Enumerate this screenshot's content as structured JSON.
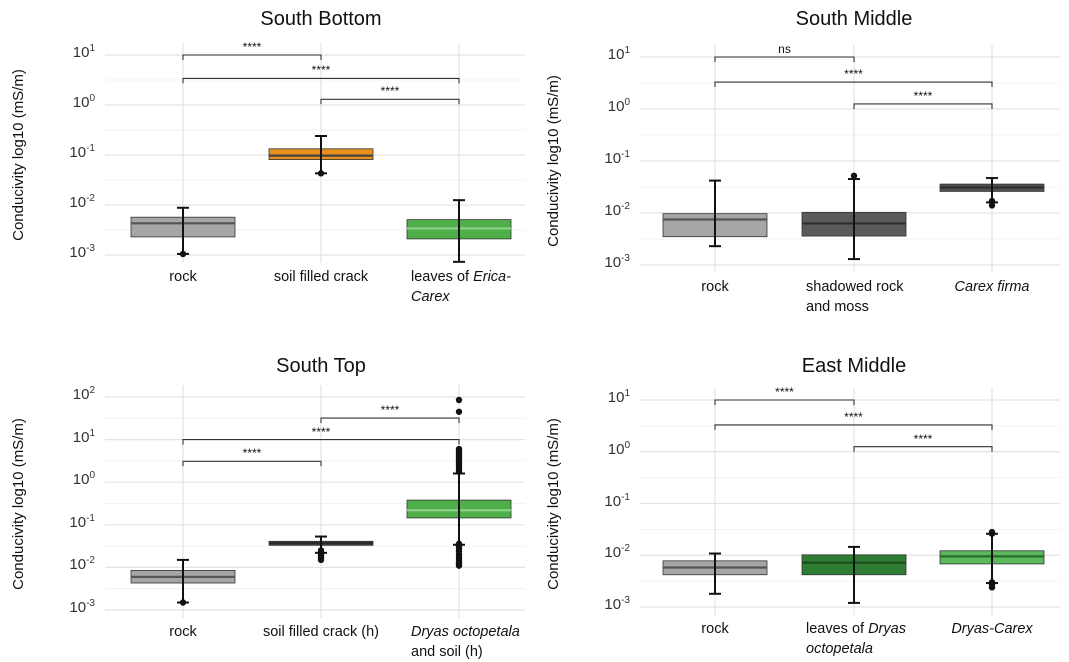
{
  "chart_data": [
    {
      "id": "sb",
      "type": "box",
      "title": "South Bottom",
      "ylabel": "Conducivity log10 (mS/m)",
      "yscale": "log",
      "ytick_exponents": [
        -3,
        -2,
        -1,
        0,
        1
      ],
      "ylim_exp": [
        -3.05,
        1.2
      ],
      "grid": true,
      "categories": [
        {
          "label": [
            {
              "t": "rock",
              "i": false
            }
          ]
        },
        {
          "label": [
            {
              "t": "soil filled crack",
              "i": false
            }
          ]
        },
        {
          "label": [
            {
              "t": "leaves of ",
              "i": false
            },
            {
              "t": "Erica-",
              "i": true
            },
            {
              "br": true
            },
            {
              "t": "Carex",
              "i": true
            }
          ]
        }
      ],
      "boxes": [
        {
          "whisker_low": 0.00105,
          "q1": 0.0023,
          "median": 0.0043,
          "q3": 0.0057,
          "whisker_high": 0.0088,
          "fill": "#a6a6a6",
          "median_color": "#555555",
          "outliers": [
            0.00105
          ]
        },
        {
          "whisker_low": 0.043,
          "q1": 0.081,
          "median": 0.097,
          "q3": 0.133,
          "whisker_high": 0.24,
          "fill": "#e88f1c",
          "median_color": "#444444",
          "outliers": [
            0.043
          ]
        },
        {
          "whisker_low": 0.00073,
          "q1": 0.0021,
          "median": 0.0034,
          "q3": 0.0051,
          "whisker_high": 0.0125,
          "fill": "#4fb04a",
          "median_color": "#8fd08a",
          "outliers": []
        }
      ],
      "comparisons": [
        {
          "from": 0,
          "to": 1,
          "y": 10,
          "label": "****"
        },
        {
          "from": 0,
          "to": 2,
          "y": 3.4,
          "label": "****"
        },
        {
          "from": 1,
          "to": 2,
          "y": 1.3,
          "label": "****"
        }
      ]
    },
    {
      "id": "sm",
      "type": "box",
      "title": "South Middle",
      "ylabel": "Conducivity log10 (mS/m)",
      "yscale": "log",
      "ytick_exponents": [
        -3,
        -2,
        -1,
        0,
        1
      ],
      "ylim_exp": [
        -3.05,
        1.2
      ],
      "grid": true,
      "categories": [
        {
          "label": [
            {
              "t": "rock",
              "i": false
            }
          ]
        },
        {
          "label": [
            {
              "t": "shadowed rock",
              "i": false
            },
            {
              "br": true
            },
            {
              "t": "and moss",
              "i": false
            }
          ]
        },
        {
          "label": [
            {
              "t": "Carex firma",
              "i": true
            }
          ]
        }
      ],
      "boxes": [
        {
          "whisker_low": 0.0023,
          "q1": 0.0035,
          "median": 0.0075,
          "q3": 0.0097,
          "whisker_high": 0.042,
          "fill": "#a6a6a6",
          "median_color": "#555555",
          "outliers": []
        },
        {
          "whisker_low": 0.0013,
          "q1": 0.0036,
          "median": 0.0063,
          "q3": 0.0103,
          "whisker_high": 0.045,
          "fill": "#5a5a5a",
          "median_color": "#2e2e2e",
          "outliers": [
            0.052
          ]
        },
        {
          "whisker_low": 0.016,
          "q1": 0.026,
          "median": 0.031,
          "q3": 0.036,
          "whisker_high": 0.047,
          "fill": "#505050",
          "median_color": "#2e2e2e",
          "outliers": [
            0.014,
            0.017
          ]
        }
      ],
      "comparisons": [
        {
          "from": 0,
          "to": 1,
          "y": 10,
          "label": "ns"
        },
        {
          "from": 0,
          "to": 2,
          "y": 3.3,
          "label": "****"
        },
        {
          "from": 1,
          "to": 2,
          "y": 1.25,
          "label": "****"
        }
      ]
    },
    {
      "id": "st",
      "type": "box",
      "title": "South Top",
      "ylabel": "Conducivity log10 (mS/m)",
      "yscale": "log",
      "ytick_exponents": [
        -3,
        -2,
        -1,
        0,
        1,
        2
      ],
      "ylim_exp": [
        -3.05,
        2.2
      ],
      "grid": true,
      "categories": [
        {
          "label": [
            {
              "t": "rock",
              "i": false
            }
          ]
        },
        {
          "label": [
            {
              "t": "soil filled crack (h)",
              "i": false
            }
          ]
        },
        {
          "label": [
            {
              "t": "Dryas octopetala",
              "i": true
            },
            {
              "br": true
            },
            {
              "t": "and soil (h)",
              "i": false
            }
          ]
        }
      ],
      "boxes": [
        {
          "whisker_low": 0.0015,
          "q1": 0.0043,
          "median": 0.006,
          "q3": 0.0085,
          "whisker_high": 0.015,
          "fill": "#a6a6a6",
          "median_color": "#555555",
          "outliers": [
            0.0015
          ]
        },
        {
          "whisker_low": 0.022,
          "q1": 0.033,
          "median": 0.037,
          "q3": 0.041,
          "whisker_high": 0.053,
          "fill": "#444444",
          "median_color": "#2a2a2a",
          "outliers": [
            0.015,
            0.017,
            0.019,
            0.022,
            0.025
          ]
        },
        {
          "whisker_low": 0.034,
          "q1": 0.145,
          "median": 0.22,
          "q3": 0.38,
          "whisker_high": 1.6,
          "fill": "#4fb04a",
          "median_color": "#8fd08a",
          "outliers": [
            0.011,
            0.012,
            0.013,
            0.015,
            0.017,
            0.02,
            0.024,
            0.028,
            0.032,
            0.036,
            1.8,
            2.0,
            2.3,
            2.6,
            2.9,
            3.3,
            3.7,
            4.1,
            4.6,
            5.1,
            5.6,
            6.0,
            45,
            85
          ]
        }
      ],
      "comparisons": [
        {
          "from": 1,
          "to": 2,
          "y": 32,
          "label": "****"
        },
        {
          "from": 0,
          "to": 2,
          "y": 10,
          "label": "****"
        },
        {
          "from": 0,
          "to": 1,
          "y": 3.1,
          "label": "****"
        }
      ]
    },
    {
      "id": "em",
      "type": "box",
      "title": "East Middle",
      "ylabel": "Conducivity log10 (mS/m)",
      "yscale": "log",
      "ytick_exponents": [
        -3,
        -2,
        -1,
        0,
        1
      ],
      "ylim_exp": [
        -3.05,
        1.2
      ],
      "grid": true,
      "categories": [
        {
          "label": [
            {
              "t": "rock",
              "i": false
            }
          ]
        },
        {
          "label": [
            {
              "t": "leaves of ",
              "i": false
            },
            {
              "t": "Dryas",
              "i": true
            },
            {
              "br": true
            },
            {
              "t": "octopetala",
              "i": true
            }
          ]
        },
        {
          "label": [
            {
              "t": "Dryas-Carex",
              "i": true
            }
          ]
        }
      ],
      "boxes": [
        {
          "whisker_low": 0.0018,
          "q1": 0.0042,
          "median": 0.0058,
          "q3": 0.0078,
          "whisker_high": 0.0108,
          "fill": "#a6a6a6",
          "median_color": "#555555",
          "outliers": []
        },
        {
          "whisker_low": 0.0012,
          "q1": 0.0042,
          "median": 0.0072,
          "q3": 0.0102,
          "whisker_high": 0.0145,
          "fill": "#2e7d32",
          "median_color": "#1b4d1e",
          "outliers": []
        },
        {
          "whisker_low": 0.0029,
          "q1": 0.0068,
          "median": 0.0095,
          "q3": 0.0122,
          "whisker_high": 0.026,
          "fill": "#5cb85c",
          "median_color": "#2e6b2e",
          "outliers": [
            0.0024,
            0.0027,
            0.003,
            0.026,
            0.028
          ]
        }
      ],
      "comparisons": [
        {
          "from": 0,
          "to": 1,
          "y": 10,
          "label": "****"
        },
        {
          "from": 0,
          "to": 2,
          "y": 3.3,
          "label": "****"
        },
        {
          "from": 1,
          "to": 2,
          "y": 1.25,
          "label": "****"
        }
      ]
    }
  ]
}
